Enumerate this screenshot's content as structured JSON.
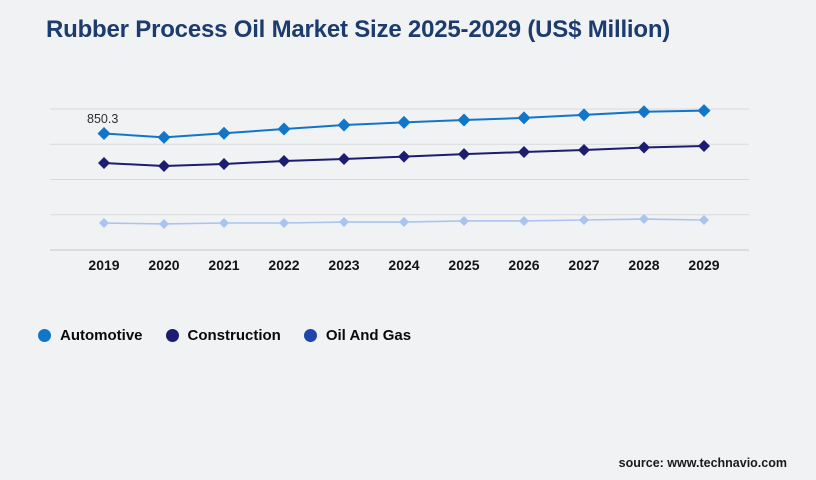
{
  "title": "Rubber Process Oil Market Size 2025-2029 (US$ Million)",
  "source": "source: www.technavio.com",
  "annotation": {
    "text": "850.3",
    "series": "Automotive",
    "year": "2019"
  },
  "colors": {
    "background": "#f1f2f4",
    "title": "#1c3c6d",
    "gridline": "#d9d9dc",
    "axis_line": "#c6c6ca",
    "automotive": "#1176c9",
    "construction": "#1c1c70",
    "oil_and_gas_line": "#a9c4ef",
    "oil_and_gas_legend": "#1c45ad",
    "year_label": "#141414",
    "legend_text": "#0a0a0a"
  },
  "chart_data": {
    "type": "line",
    "title": "Rubber Process Oil Market Size 2025-2029 (US$ Million)",
    "xlabel": "",
    "ylabel": "US$ Million",
    "x": [
      "2019",
      "2020",
      "2021",
      "2022",
      "2023",
      "2024",
      "2025",
      "2026",
      "2027",
      "2028",
      "2029"
    ],
    "series": [
      {
        "name": "Automotive",
        "color": "#1176c9",
        "marker": "diamond",
        "values": [
          850.3,
          822,
          852,
          883,
          912,
          932,
          949,
          964,
          986,
          1009,
          1017
        ]
      },
      {
        "name": "Construction",
        "color": "#1c1c70",
        "marker": "diamond",
        "values": [
          635,
          613,
          628,
          650,
          664,
          682,
          700,
          715,
          730,
          748,
          759
        ]
      },
      {
        "name": "Oil And Gas",
        "color": "#a9c4ef",
        "legend_color": "#1c45ad",
        "marker": "diamond",
        "values": [
          197,
          190,
          197,
          197,
          204,
          204,
          212,
          212,
          219,
          226,
          219
        ]
      }
    ],
    "data_labels": [
      {
        "series": "Automotive",
        "x": "2019",
        "text": "850.3"
      }
    ],
    "ylim": [
      0,
      1060
    ],
    "grid": "horizontal",
    "legend_position": "bottom-left",
    "values_estimated": true
  }
}
